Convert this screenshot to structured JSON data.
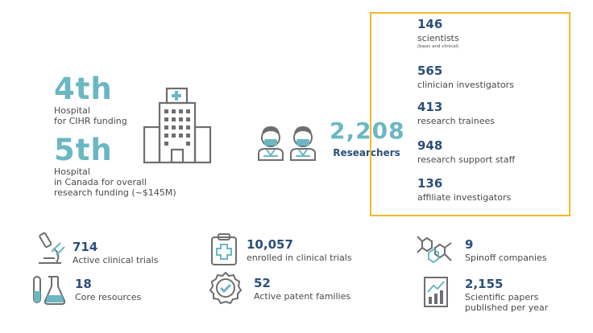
{
  "rankings": [
    {
      "rank": "4th",
      "label_line1": "Hospital",
      "label_line2": "for CIHR funding"
    },
    {
      "rank": "5th",
      "label_line1": "Hospital",
      "label_line2": "in Canada for overall",
      "label_line3": "research funding (~$145M)"
    }
  ],
  "researchers": {
    "total": "2,208",
    "label": "Researchers"
  },
  "breakdown": [
    {
      "number": "146",
      "label": "scientists",
      "note": "(basic and clinical)"
    },
    {
      "number": "565",
      "label": "clinician investigators"
    },
    {
      "number": "413",
      "label": "research trainees"
    },
    {
      "number": "948",
      "label": "research support staff"
    },
    {
      "number": "136",
      "label": "affiliate investigators"
    }
  ],
  "bottom_stats": [
    {
      "number": "714",
      "label": "Active clinical trials",
      "icon": "microscope-icon"
    },
    {
      "number": "10,057",
      "label": "enrolled in clinical trials",
      "icon": "clipboard-cross-icon"
    },
    {
      "number": "9",
      "label": "Spinoff companies",
      "icon": "molecule-icon"
    },
    {
      "number": "18",
      "label": "Core resources",
      "icon": "flask-icon"
    },
    {
      "number": "52",
      "label": "Active patent families",
      "icon": "badge-check-icon"
    },
    {
      "number": "2,155",
      "label_line1": "Scientific papers",
      "label_line2": "published per year",
      "icon": "bar-chart-icon"
    }
  ],
  "colors": {
    "teal": "#6bb7c3",
    "navy": "#2d4f78",
    "gold": "#f5b82e",
    "grey": "#6d6e71"
  }
}
